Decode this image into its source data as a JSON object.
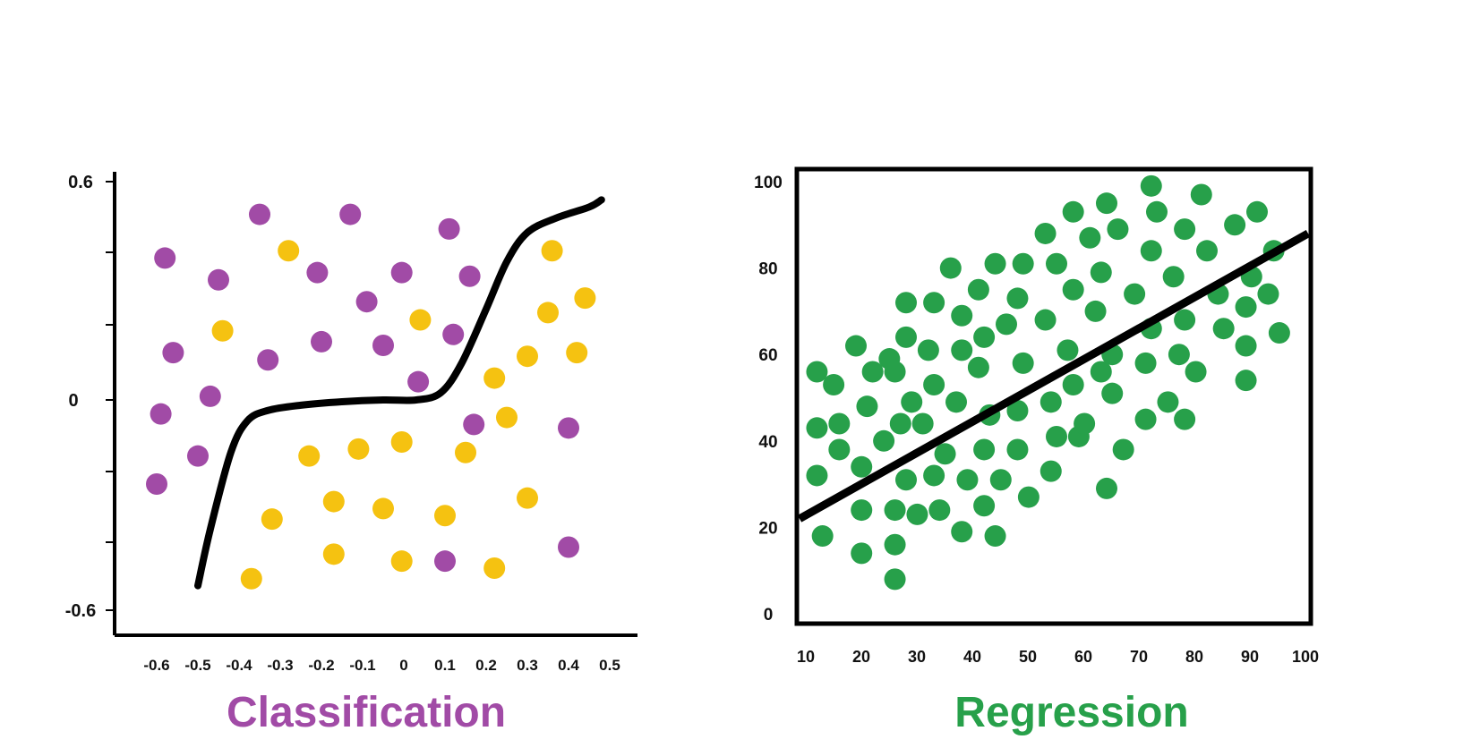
{
  "colors": {
    "class_a": "#a14ba6",
    "class_b": "#f5c211",
    "regression_points": "#27a04a",
    "caption_left": "#a14ba6",
    "caption_right": "#27a04a",
    "axis": "#000000"
  },
  "chart_data": [
    {
      "type": "scatter",
      "title": "Classification",
      "xlabel": "",
      "ylabel": "",
      "xlim": [
        -0.6,
        0.5
      ],
      "ylim": [
        -0.6,
        0.6
      ],
      "x_ticks": [
        "-0.6",
        "-0.5",
        "-0.4",
        "-0.3",
        "-0.2",
        "-0.1",
        "0",
        "0.1",
        "0.2",
        "0.3",
        "0.4",
        "0.5"
      ],
      "y_ticks": [
        "0.6",
        "0",
        "-0.6"
      ],
      "series": [
        {
          "name": "purple class",
          "color": "#a14ba6",
          "points": [
            [
              -0.58,
              0.39
            ],
            [
              -0.56,
              0.13
            ],
            [
              -0.59,
              -0.04
            ],
            [
              -0.6,
              -0.24
            ],
            [
              -0.5,
              -0.16
            ],
            [
              -0.45,
              0.33
            ],
            [
              -0.47,
              0.01
            ],
            [
              -0.35,
              0.51
            ],
            [
              -0.33,
              0.11
            ],
            [
              -0.21,
              0.35
            ],
            [
              -0.2,
              0.16
            ],
            [
              -0.13,
              0.51
            ],
            [
              -0.09,
              0.27
            ],
            [
              -0.05,
              0.15
            ],
            [
              -0.005,
              0.35
            ],
            [
              0.035,
              0.05
            ],
            [
              0.11,
              0.47
            ],
            [
              0.12,
              0.18
            ],
            [
              0.16,
              0.34
            ],
            [
              0.17,
              -0.07
            ],
            [
              0.4,
              -0.08
            ],
            [
              0.1,
              -0.46
            ],
            [
              0.4,
              -0.42
            ]
          ]
        },
        {
          "name": "yellow class",
          "color": "#f5c211",
          "points": [
            [
              -0.44,
              0.19
            ],
            [
              -0.28,
              0.41
            ],
            [
              -0.23,
              -0.16
            ],
            [
              -0.32,
              -0.34
            ],
            [
              -0.37,
              -0.51
            ],
            [
              -0.17,
              -0.29
            ],
            [
              -0.17,
              -0.44
            ],
            [
              -0.11,
              -0.14
            ],
            [
              -0.05,
              -0.31
            ],
            [
              -0.005,
              -0.12
            ],
            [
              -0.005,
              -0.46
            ],
            [
              0.04,
              0.22
            ],
            [
              0.1,
              -0.33
            ],
            [
              0.15,
              -0.15
            ],
            [
              0.22,
              0.06
            ],
            [
              0.25,
              -0.05
            ],
            [
              0.22,
              -0.48
            ],
            [
              0.3,
              0.12
            ],
            [
              0.3,
              -0.28
            ],
            [
              0.35,
              0.24
            ],
            [
              0.36,
              0.41
            ],
            [
              0.42,
              0.13
            ],
            [
              0.44,
              0.28
            ]
          ]
        },
        {
          "name": "decision boundary",
          "type": "line",
          "color": "#000000",
          "points": [
            [
              -0.5,
              -0.53
            ],
            [
              -0.47,
              -0.37
            ],
            [
              -0.42,
              -0.15
            ],
            [
              -0.38,
              -0.06
            ],
            [
              -0.33,
              -0.03
            ],
            [
              -0.25,
              -0.015
            ],
            [
              -0.15,
              -0.005
            ],
            [
              -0.05,
              0.0
            ],
            [
              0.03,
              0.0
            ],
            [
              0.09,
              0.02
            ],
            [
              0.14,
              0.1
            ],
            [
              0.2,
              0.25
            ],
            [
              0.25,
              0.38
            ],
            [
              0.3,
              0.46
            ],
            [
              0.37,
              0.5
            ],
            [
              0.45,
              0.53
            ],
            [
              0.48,
              0.55
            ]
          ]
        }
      ]
    },
    {
      "type": "scatter",
      "title": "Regression",
      "xlabel": "",
      "ylabel": "",
      "xlim": [
        10,
        100
      ],
      "ylim": [
        0,
        100
      ],
      "x_ticks": [
        "10",
        "20",
        "30",
        "40",
        "50",
        "60",
        "70",
        "80",
        "90",
        "100"
      ],
      "y_ticks": [
        "100",
        "80",
        "60",
        "40",
        "20",
        "0"
      ],
      "series": [
        {
          "name": "observations",
          "color": "#27a04a",
          "points": [
            [
              12,
              56
            ],
            [
              12,
              43
            ],
            [
              12,
              32
            ],
            [
              13,
              18
            ],
            [
              15,
              53
            ],
            [
              16,
              44
            ],
            [
              16,
              38
            ],
            [
              19,
              62
            ],
            [
              20,
              34
            ],
            [
              20,
              24
            ],
            [
              20,
              14
            ],
            [
              21,
              48
            ],
            [
              22,
              56
            ],
            [
              24,
              40
            ],
            [
              25,
              59
            ],
            [
              26,
              56
            ],
            [
              26,
              24
            ],
            [
              26,
              16
            ],
            [
              26,
              8
            ],
            [
              27,
              44
            ],
            [
              28,
              72
            ],
            [
              28,
              64
            ],
            [
              28,
              31
            ],
            [
              29,
              49
            ],
            [
              30,
              23
            ],
            [
              31,
              44
            ],
            [
              32,
              61
            ],
            [
              33,
              53
            ],
            [
              33,
              72
            ],
            [
              33,
              32
            ],
            [
              34,
              24
            ],
            [
              35,
              37
            ],
            [
              36,
              80
            ],
            [
              37,
              49
            ],
            [
              38,
              61
            ],
            [
              38,
              69
            ],
            [
              38,
              19
            ],
            [
              39,
              31
            ],
            [
              41,
              57
            ],
            [
              41,
              75
            ],
            [
              42,
              64
            ],
            [
              42,
              38
            ],
            [
              42,
              25
            ],
            [
              43,
              46
            ],
            [
              44,
              81
            ],
            [
              44,
              18
            ],
            [
              45,
              31
            ],
            [
              46,
              67
            ],
            [
              48,
              73
            ],
            [
              48,
              38
            ],
            [
              48,
              47
            ],
            [
              49,
              81
            ],
            [
              49,
              58
            ],
            [
              50,
              27
            ],
            [
              53,
              88
            ],
            [
              53,
              68
            ],
            [
              54,
              49
            ],
            [
              54,
              33
            ],
            [
              55,
              41
            ],
            [
              55,
              81
            ],
            [
              57,
              61
            ],
            [
              58,
              75
            ],
            [
              58,
              93
            ],
            [
              58,
              53
            ],
            [
              59,
              41
            ],
            [
              60,
              44
            ],
            [
              61,
              87
            ],
            [
              62,
              70
            ],
            [
              63,
              79
            ],
            [
              63,
              56
            ],
            [
              64,
              29
            ],
            [
              64,
              95
            ],
            [
              65,
              51
            ],
            [
              65,
              60
            ],
            [
              66,
              89
            ],
            [
              67,
              38
            ],
            [
              69,
              74
            ],
            [
              71,
              45
            ],
            [
              71,
              58
            ],
            [
              72,
              84
            ],
            [
              72,
              66
            ],
            [
              72,
              99
            ],
            [
              73,
              93
            ],
            [
              75,
              49
            ],
            [
              76,
              78
            ],
            [
              77,
              60
            ],
            [
              78,
              89
            ],
            [
              78,
              68
            ],
            [
              78,
              45
            ],
            [
              80,
              56
            ],
            [
              81,
              97
            ],
            [
              82,
              84
            ],
            [
              84,
              74
            ],
            [
              85,
              66
            ],
            [
              87,
              90
            ],
            [
              89,
              71
            ],
            [
              89,
              54
            ],
            [
              89,
              62
            ],
            [
              90,
              78
            ],
            [
              91,
              93
            ],
            [
              93,
              74
            ],
            [
              94,
              84
            ],
            [
              95,
              65
            ]
          ]
        },
        {
          "name": "regression line",
          "type": "line",
          "color": "#000000",
          "points": [
            [
              10,
              22
            ],
            [
              100,
              88
            ]
          ]
        }
      ]
    }
  ]
}
